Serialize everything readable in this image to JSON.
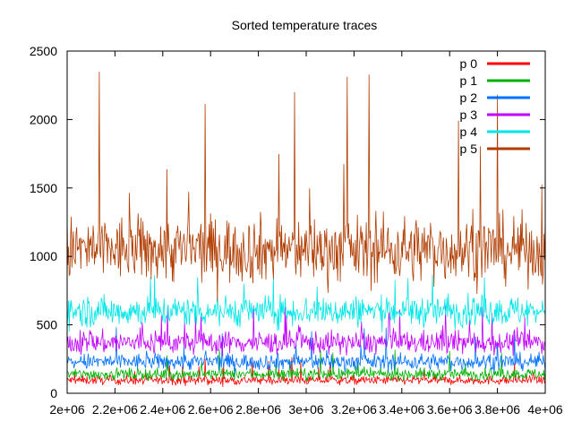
{
  "chart_data": {
    "type": "line",
    "title": "Sorted temperature traces",
    "xlabel": "",
    "ylabel": "",
    "xlim": [
      2000000,
      4000000
    ],
    "ylim": [
      0,
      2500
    ],
    "grid": false,
    "legend_position": "top-right",
    "x_tick_values": [
      2000000,
      2200000,
      2400000,
      2600000,
      2800000,
      3000000,
      3200000,
      3400000,
      3600000,
      3800000,
      4000000
    ],
    "x_tick_labels": [
      "2e+06",
      "2.2e+06",
      "2.4e+06",
      "2.6e+06",
      "2.8e+06",
      "3e+06",
      "3.2e+06",
      "3.4e+06",
      "3.6e+06",
      "3.8e+06",
      "4e+06"
    ],
    "y_tick_values": [
      0,
      500,
      1000,
      1500,
      2000,
      2500
    ],
    "y_tick_labels": [
      "0",
      "500",
      "1000",
      "1500",
      "2000",
      "2500"
    ],
    "series": [
      {
        "name": "p 0",
        "color": "#ff0000",
        "mean": 95,
        "spread": 35,
        "max": 280
      },
      {
        "name": "p 1",
        "color": "#00b000",
        "mean": 140,
        "spread": 45,
        "max": 330
      },
      {
        "name": "p 2",
        "color": "#0070ff",
        "mean": 230,
        "spread": 65,
        "max": 500
      },
      {
        "name": "p 3",
        "color": "#c000ff",
        "mean": 370,
        "spread": 90,
        "max": 640
      },
      {
        "name": "p 4",
        "color": "#00e6e6",
        "mean": 600,
        "spread": 120,
        "max": 900
      },
      {
        "name": "p 5",
        "color": "#b03c00",
        "mean": 1050,
        "spread": 260,
        "max": 2440
      }
    ]
  }
}
